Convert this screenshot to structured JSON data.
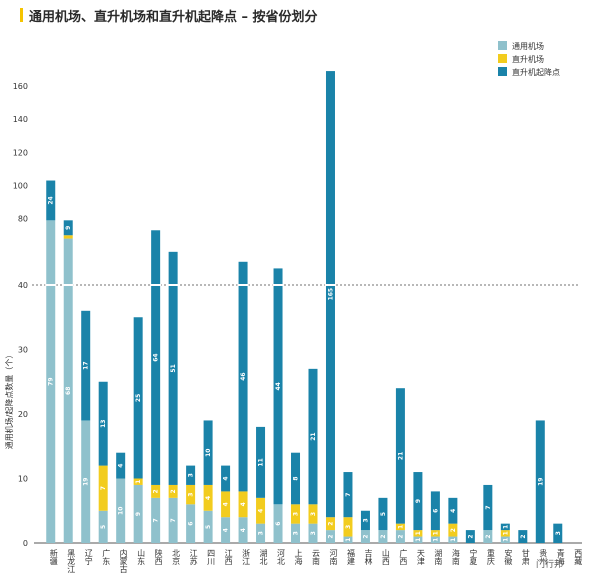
{
  "chart_data": {
    "type": "bar",
    "stacked": true,
    "title": "通用机场、直升机场和直升机起降点 – 按省份划分",
    "ylabel": "通用机场/起降点数量（个）",
    "y_axis_break": true,
    "lower_ylim": [
      0,
      40
    ],
    "upper_ylim": [
      40,
      160
    ],
    "lower_ticks": [
      0,
      10,
      20,
      30,
      40
    ],
    "upper_ticks": [
      80,
      100,
      120,
      140,
      160
    ],
    "legend_position": "top-right",
    "categories": [
      "新疆",
      "黑龙江",
      "辽宁",
      "广东",
      "内蒙古",
      "山东",
      "陕西",
      "北京",
      "江苏",
      "四川",
      "江西",
      "浙江",
      "湖北",
      "河北",
      "上海",
      "云南",
      "河南",
      "福建",
      "吉林",
      "山西",
      "广西",
      "天津",
      "湖南",
      "海南",
      "宁夏",
      "重庆",
      "安徽",
      "甘肃",
      "贵州",
      "青海",
      "西藏"
    ],
    "series": [
      {
        "name": "通用机场",
        "color": "#8fc1cc",
        "values": [
          79,
          68,
          19,
          5,
          10,
          9,
          7,
          7,
          6,
          5,
          4,
          4,
          3,
          6,
          3,
          3,
          2,
          1,
          2,
          2,
          2,
          1,
          1,
          1,
          0,
          2,
          1,
          0,
          0,
          0,
          0
        ]
      },
      {
        "name": "直升机场",
        "color": "#f2cc1e",
        "values": [
          0,
          2,
          0,
          7,
          0,
          1,
          2,
          2,
          3,
          4,
          4,
          4,
          4,
          0,
          3,
          3,
          2,
          3,
          0,
          0,
          1,
          1,
          1,
          2,
          0,
          0,
          1,
          0,
          0,
          0,
          0
        ]
      },
      {
        "name": "直升机起降点",
        "color": "#1a83a9",
        "values": [
          24,
          9,
          17,
          13,
          4,
          25,
          64,
          51,
          3,
          10,
          4,
          46,
          11,
          44,
          8,
          21,
          165,
          7,
          3,
          5,
          21,
          9,
          6,
          4,
          2,
          7,
          1,
          2,
          19,
          3,
          0
        ]
      }
    ]
  },
  "watermark": "门行邦"
}
